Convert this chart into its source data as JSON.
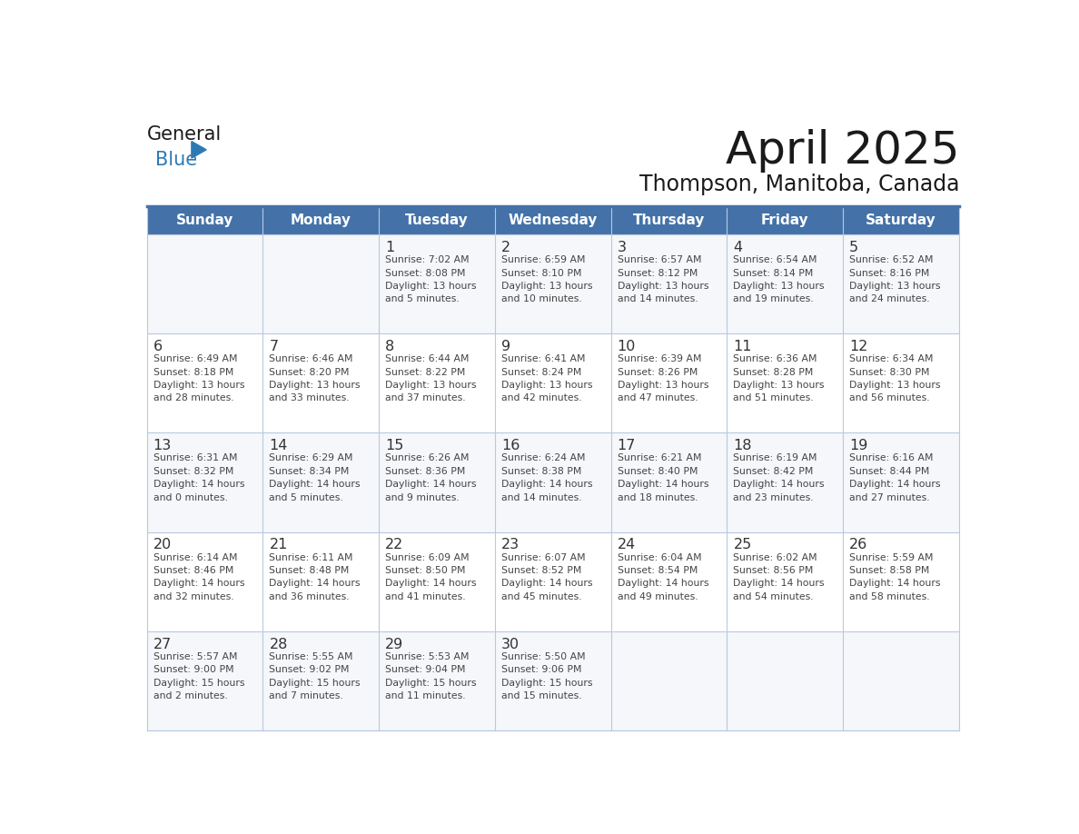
{
  "title": "April 2025",
  "subtitle": "Thompson, Manitoba, Canada",
  "header_bg_color": "#4472a8",
  "header_text_color": "#ffffff",
  "row_colors": [
    "#f5f7fa",
    "#ffffff"
  ],
  "border_color": "#4472a8",
  "cell_border_color": "#b8c9e0",
  "text_color": "#333333",
  "info_color": "#444444",
  "logo_black": "#1a1a1a",
  "logo_blue": "#2c7ab5",
  "days_of_week": [
    "Sunday",
    "Monday",
    "Tuesday",
    "Wednesday",
    "Thursday",
    "Friday",
    "Saturday"
  ],
  "calendar_data": [
    [
      {
        "day": "",
        "info": ""
      },
      {
        "day": "",
        "info": ""
      },
      {
        "day": "1",
        "info": "Sunrise: 7:02 AM\nSunset: 8:08 PM\nDaylight: 13 hours\nand 5 minutes."
      },
      {
        "day": "2",
        "info": "Sunrise: 6:59 AM\nSunset: 8:10 PM\nDaylight: 13 hours\nand 10 minutes."
      },
      {
        "day": "3",
        "info": "Sunrise: 6:57 AM\nSunset: 8:12 PM\nDaylight: 13 hours\nand 14 minutes."
      },
      {
        "day": "4",
        "info": "Sunrise: 6:54 AM\nSunset: 8:14 PM\nDaylight: 13 hours\nand 19 minutes."
      },
      {
        "day": "5",
        "info": "Sunrise: 6:52 AM\nSunset: 8:16 PM\nDaylight: 13 hours\nand 24 minutes."
      }
    ],
    [
      {
        "day": "6",
        "info": "Sunrise: 6:49 AM\nSunset: 8:18 PM\nDaylight: 13 hours\nand 28 minutes."
      },
      {
        "day": "7",
        "info": "Sunrise: 6:46 AM\nSunset: 8:20 PM\nDaylight: 13 hours\nand 33 minutes."
      },
      {
        "day": "8",
        "info": "Sunrise: 6:44 AM\nSunset: 8:22 PM\nDaylight: 13 hours\nand 37 minutes."
      },
      {
        "day": "9",
        "info": "Sunrise: 6:41 AM\nSunset: 8:24 PM\nDaylight: 13 hours\nand 42 minutes."
      },
      {
        "day": "10",
        "info": "Sunrise: 6:39 AM\nSunset: 8:26 PM\nDaylight: 13 hours\nand 47 minutes."
      },
      {
        "day": "11",
        "info": "Sunrise: 6:36 AM\nSunset: 8:28 PM\nDaylight: 13 hours\nand 51 minutes."
      },
      {
        "day": "12",
        "info": "Sunrise: 6:34 AM\nSunset: 8:30 PM\nDaylight: 13 hours\nand 56 minutes."
      }
    ],
    [
      {
        "day": "13",
        "info": "Sunrise: 6:31 AM\nSunset: 8:32 PM\nDaylight: 14 hours\nand 0 minutes."
      },
      {
        "day": "14",
        "info": "Sunrise: 6:29 AM\nSunset: 8:34 PM\nDaylight: 14 hours\nand 5 minutes."
      },
      {
        "day": "15",
        "info": "Sunrise: 6:26 AM\nSunset: 8:36 PM\nDaylight: 14 hours\nand 9 minutes."
      },
      {
        "day": "16",
        "info": "Sunrise: 6:24 AM\nSunset: 8:38 PM\nDaylight: 14 hours\nand 14 minutes."
      },
      {
        "day": "17",
        "info": "Sunrise: 6:21 AM\nSunset: 8:40 PM\nDaylight: 14 hours\nand 18 minutes."
      },
      {
        "day": "18",
        "info": "Sunrise: 6:19 AM\nSunset: 8:42 PM\nDaylight: 14 hours\nand 23 minutes."
      },
      {
        "day": "19",
        "info": "Sunrise: 6:16 AM\nSunset: 8:44 PM\nDaylight: 14 hours\nand 27 minutes."
      }
    ],
    [
      {
        "day": "20",
        "info": "Sunrise: 6:14 AM\nSunset: 8:46 PM\nDaylight: 14 hours\nand 32 minutes."
      },
      {
        "day": "21",
        "info": "Sunrise: 6:11 AM\nSunset: 8:48 PM\nDaylight: 14 hours\nand 36 minutes."
      },
      {
        "day": "22",
        "info": "Sunrise: 6:09 AM\nSunset: 8:50 PM\nDaylight: 14 hours\nand 41 minutes."
      },
      {
        "day": "23",
        "info": "Sunrise: 6:07 AM\nSunset: 8:52 PM\nDaylight: 14 hours\nand 45 minutes."
      },
      {
        "day": "24",
        "info": "Sunrise: 6:04 AM\nSunset: 8:54 PM\nDaylight: 14 hours\nand 49 minutes."
      },
      {
        "day": "25",
        "info": "Sunrise: 6:02 AM\nSunset: 8:56 PM\nDaylight: 14 hours\nand 54 minutes."
      },
      {
        "day": "26",
        "info": "Sunrise: 5:59 AM\nSunset: 8:58 PM\nDaylight: 14 hours\nand 58 minutes."
      }
    ],
    [
      {
        "day": "27",
        "info": "Sunrise: 5:57 AM\nSunset: 9:00 PM\nDaylight: 15 hours\nand 2 minutes."
      },
      {
        "day": "28",
        "info": "Sunrise: 5:55 AM\nSunset: 9:02 PM\nDaylight: 15 hours\nand 7 minutes."
      },
      {
        "day": "29",
        "info": "Sunrise: 5:53 AM\nSunset: 9:04 PM\nDaylight: 15 hours\nand 11 minutes."
      },
      {
        "day": "30",
        "info": "Sunrise: 5:50 AM\nSunset: 9:06 PM\nDaylight: 15 hours\nand 15 minutes."
      },
      {
        "day": "",
        "info": ""
      },
      {
        "day": "",
        "info": ""
      },
      {
        "day": "",
        "info": ""
      }
    ]
  ]
}
